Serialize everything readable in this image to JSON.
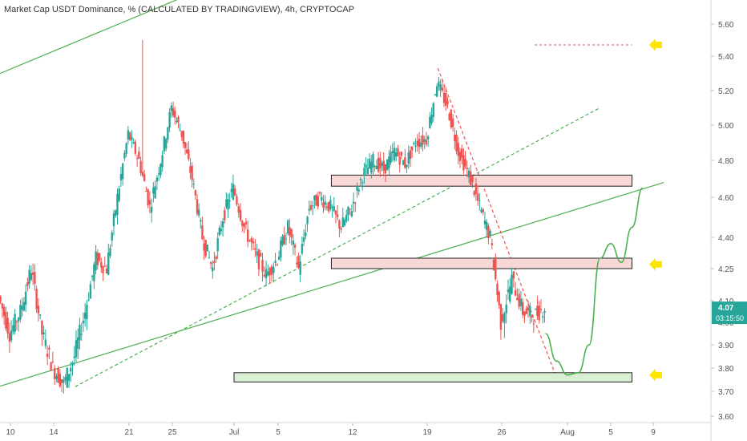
{
  "title": "Market Cap USDT Dominance, % (CALCULATED BY TRADINGVIEW), 4h, CRYPTOCAP",
  "colors": {
    "up": "#26a69a",
    "down": "#ef5350",
    "trend": "#4caf50",
    "resistance_zone": "#f8d7d7",
    "support_zone": "#d9efd4",
    "arrow": "#ffe600",
    "price_tag": "#26a69a"
  },
  "price_tag": {
    "price": "4.07",
    "countdown": "03:15:50"
  },
  "chart_data": {
    "type": "candlestick",
    "xlabel": "",
    "ylabel": "",
    "grid": false,
    "y_ticks": [
      5.6,
      5.4,
      5.2,
      5.0,
      4.8,
      4.6,
      4.4,
      4.25,
      4.1,
      4.0,
      3.9,
      3.8,
      3.7,
      3.6
    ],
    "y_tick_labels": [
      "5.60",
      "5.40",
      "5.20",
      "5.00",
      "4.80",
      "4.60",
      "4.40",
      "4.25",
      "4.10",
      "4.00",
      "3.90",
      "3.80",
      "3.70",
      "3.60"
    ],
    "x_tick_labels": [
      "10",
      "14",
      "21",
      "25",
      "Jul",
      "5",
      "12",
      "19",
      "26",
      "Aug",
      "5",
      "9"
    ],
    "price_path": [
      [
        "Jun 9",
        4.12
      ],
      [
        "Jun 10",
        3.95
      ],
      [
        "Jun 11",
        4.05
      ],
      [
        "Jun 12",
        4.25
      ],
      [
        "Jun 13",
        3.95
      ],
      [
        "Jun 14",
        3.8
      ],
      [
        "Jun 15",
        3.73
      ],
      [
        "Jun 16",
        3.85
      ],
      [
        "Jun 17",
        4.05
      ],
      [
        "Jun 18",
        4.3
      ],
      [
        "Jun 19",
        4.25
      ],
      [
        "Jun 20",
        4.6
      ],
      [
        "Jun 21",
        4.95
      ],
      [
        "Jun 22",
        4.8
      ],
      [
        "Jun 23",
        4.55
      ],
      [
        "Jun 24",
        4.8
      ],
      [
        "Jun 25",
        5.1
      ],
      [
        "Jun 26",
        4.95
      ],
      [
        "Jun 27",
        4.7
      ],
      [
        "Jun 28",
        4.4
      ],
      [
        "Jun 29",
        4.25
      ],
      [
        "Jun 30",
        4.5
      ],
      [
        "Jul 1",
        4.65
      ],
      [
        "Jul 2",
        4.45
      ],
      [
        "Jul 3",
        4.32
      ],
      [
        "Jul 4",
        4.22
      ],
      [
        "Jul 5",
        4.3
      ],
      [
        "Jul 6",
        4.45
      ],
      [
        "Jul 7",
        4.25
      ],
      [
        "Jul 8",
        4.55
      ],
      [
        "Jul 9",
        4.6
      ],
      [
        "Jul 10",
        4.55
      ],
      [
        "Jul 11",
        4.45
      ],
      [
        "Jul 12",
        4.55
      ],
      [
        "Jul 13",
        4.72
      ],
      [
        "Jul 14",
        4.8
      ],
      [
        "Jul 15",
        4.75
      ],
      [
        "Jul 16",
        4.85
      ],
      [
        "Jul 17",
        4.78
      ],
      [
        "Jul 18",
        4.9
      ],
      [
        "Jul 19",
        4.92
      ],
      [
        "Jul 20",
        5.25
      ],
      [
        "Jul 21",
        5.1
      ],
      [
        "Jul 22",
        4.85
      ],
      [
        "Jul 23",
        4.72
      ],
      [
        "Jul 24",
        4.55
      ],
      [
        "Jul 25",
        4.4
      ],
      [
        "Jul 26",
        4.0
      ],
      [
        "Jul 27",
        4.2
      ],
      [
        "Jul 28",
        4.05
      ],
      [
        "Jul 29",
        4.03
      ],
      [
        "Jul 30",
        4.07
      ]
    ],
    "zones": [
      {
        "kind": "resistance",
        "from_date": "Jul 10",
        "to_date": "Aug 7",
        "low": 4.66,
        "high": 4.72
      },
      {
        "kind": "resistance",
        "from_date": "Jul 10",
        "to_date": "Aug 7",
        "low": 4.25,
        "high": 4.3
      },
      {
        "kind": "support",
        "from_date": "Jul 1",
        "to_date": "Aug 7",
        "low": 3.74,
        "high": 3.78
      }
    ],
    "dashed_level": {
      "price": 5.47,
      "from_date": "Jul 29",
      "to_date": "Aug 7"
    },
    "arrow_levels": [
      5.47,
      4.27,
      3.77
    ],
    "trendlines": [
      {
        "style": "solid",
        "from": [
          "Jun 6",
          5.22
        ],
        "to": [
          "Jul 1",
          5.9
        ]
      },
      {
        "style": "solid",
        "from": [
          "Jun 6",
          3.68
        ],
        "to": [
          "Aug 10",
          4.68
        ]
      },
      {
        "style": "dashed",
        "from": [
          "Jun 16",
          3.72
        ],
        "to": [
          "Aug 4",
          5.1
        ]
      },
      {
        "style": "dashed-red",
        "from": [
          "Jul 20",
          5.33
        ],
        "to": [
          "Jul 31",
          3.76
        ]
      }
    ],
    "projection": [
      [
        "Jul 30",
        3.95
      ],
      [
        "Jul 31",
        3.83
      ],
      [
        "Aug 1",
        3.77
      ],
      [
        "Aug 2",
        3.78
      ],
      [
        "Aug 3",
        3.9
      ],
      [
        "Aug 4",
        4.3
      ],
      [
        "Aug 5",
        4.37
      ],
      [
        "Aug 6",
        4.28
      ],
      [
        "Aug 7",
        4.45
      ],
      [
        "Aug 8",
        4.65
      ]
    ]
  }
}
